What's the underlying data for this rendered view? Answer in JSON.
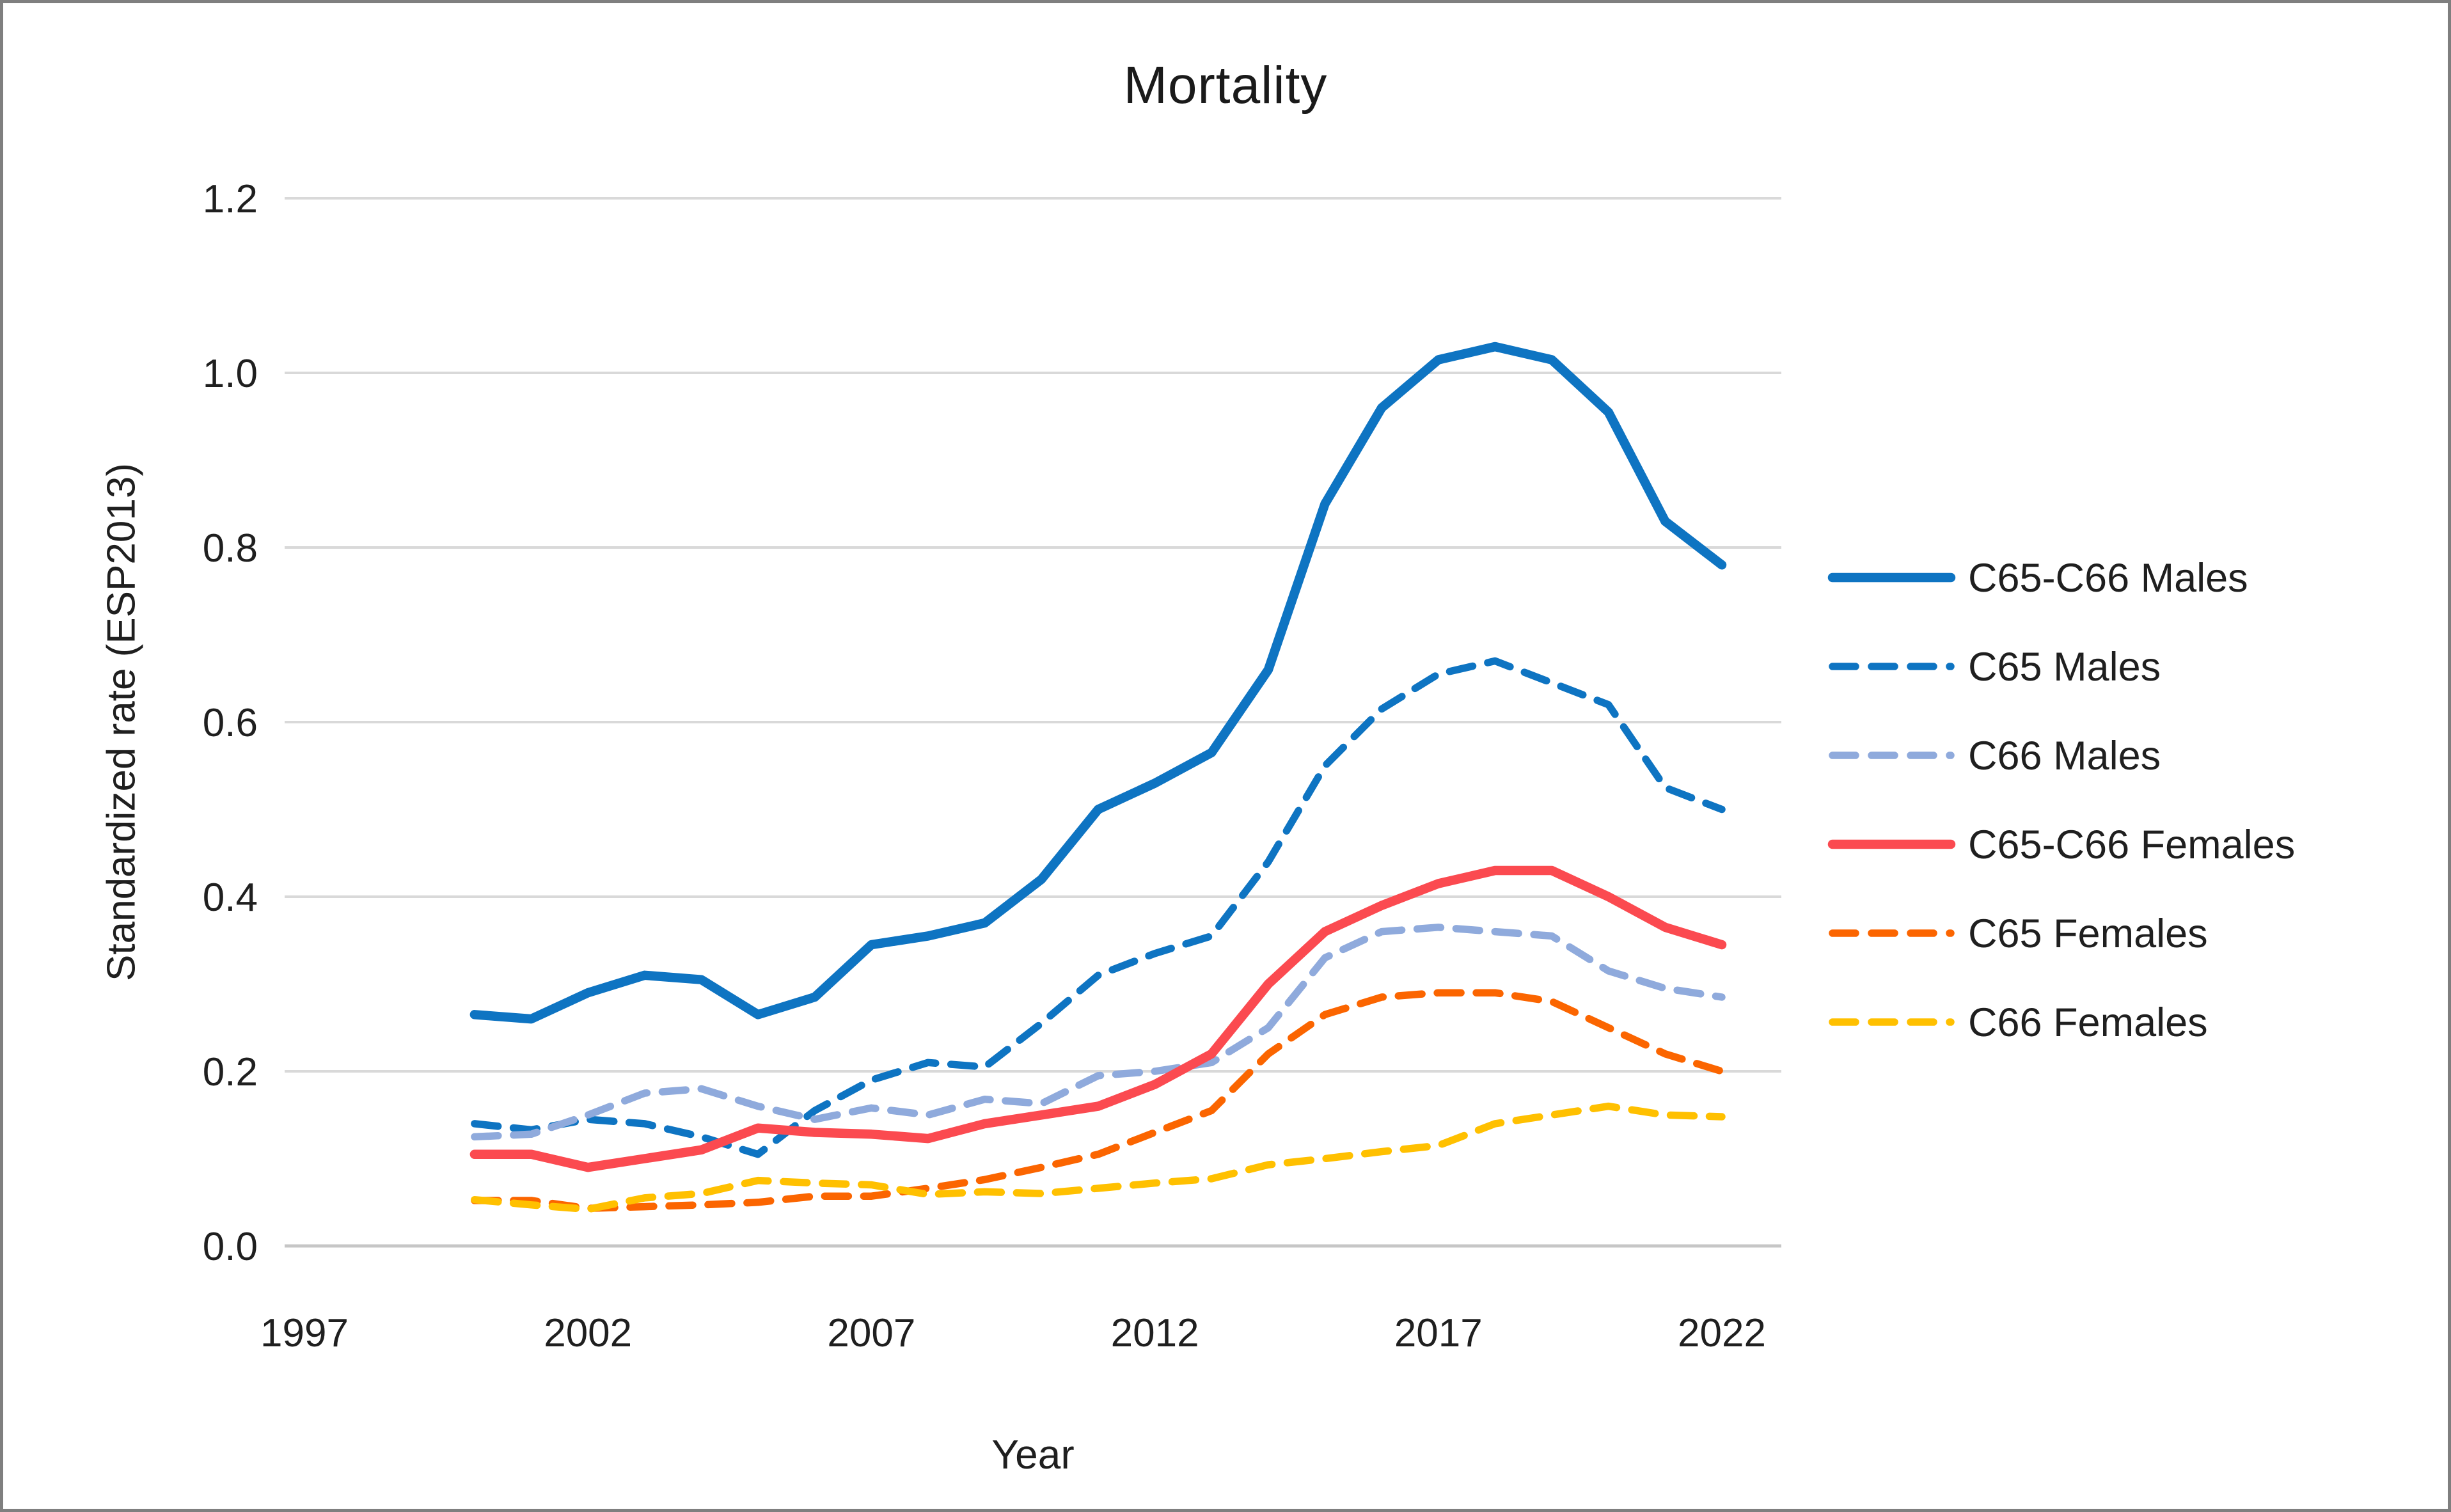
{
  "figure": {
    "title": "Mortality"
  },
  "axes": {
    "y": {
      "label": "Standardized rate (ESP2013)",
      "tick_labels": [
        "0.0",
        "0.2",
        "0.4",
        "0.6",
        "0.8",
        "1.0",
        "1.2"
      ],
      "tick_values": [
        0,
        0.2,
        0.4,
        0.6,
        0.8,
        1.0,
        1.2
      ]
    },
    "x": {
      "label": "Year",
      "tick_labels": [
        "1997",
        "2002",
        "2007",
        "2012",
        "2017",
        "2022"
      ],
      "tick_values": [
        1997,
        2002,
        2007,
        2012,
        2017,
        2022
      ]
    }
  },
  "colors": {
    "blue": "#0E74C2",
    "light_blue": "#8FAADC",
    "red": "#FB4A50",
    "orange": "#FB6500",
    "yellow": "#FFC000",
    "gridline": "#D9D9D9",
    "axis_line": "#C6C6C6",
    "text": "#1F1F1F",
    "border": "#7F7F7F"
  },
  "chart_data": {
    "type": "line",
    "title": "Mortality",
    "xlabel": "Year",
    "ylabel": "Standardized rate (ESP2013)",
    "xlim": [
      1997,
      2023
    ],
    "ylim": [
      0,
      1.2
    ],
    "grid": true,
    "legend_position": "right",
    "x": [
      2000,
      2001,
      2002,
      2003,
      2004,
      2005,
      2006,
      2007,
      2008,
      2009,
      2010,
      2011,
      2012,
      2013,
      2014,
      2015,
      2016,
      2017,
      2018,
      2019,
      2020,
      2021,
      2022
    ],
    "series": [
      {
        "name": "C65-C66 Males",
        "color": "#0E74C2",
        "style": "solid",
        "values": [
          0.265,
          0.26,
          0.29,
          0.31,
          0.305,
          0.265,
          0.285,
          0.345,
          0.355,
          0.37,
          0.42,
          0.5,
          0.53,
          0.565,
          0.66,
          0.85,
          0.96,
          1.015,
          1.03,
          1.015,
          0.955,
          0.83,
          0.78
        ]
      },
      {
        "name": "C65 Males",
        "color": "#0E74C2",
        "style": "dashed",
        "values": [
          0.14,
          0.133,
          0.145,
          0.14,
          0.125,
          0.105,
          0.155,
          0.19,
          0.21,
          0.205,
          0.255,
          0.31,
          0.335,
          0.355,
          0.44,
          0.55,
          0.615,
          0.655,
          0.67,
          0.645,
          0.62,
          0.525,
          0.5
        ]
      },
      {
        "name": "C66 Males",
        "color": "#8FAADC",
        "style": "dashed",
        "values": [
          0.125,
          0.128,
          0.15,
          0.175,
          0.18,
          0.16,
          0.145,
          0.158,
          0.15,
          0.168,
          0.163,
          0.195,
          0.2,
          0.21,
          0.25,
          0.33,
          0.36,
          0.365,
          0.36,
          0.355,
          0.315,
          0.295,
          0.285
        ]
      },
      {
        "name": "C65-C66 Females",
        "color": "#FB4A50",
        "style": "solid",
        "values": [
          0.105,
          0.105,
          0.09,
          0.1,
          0.11,
          0.135,
          0.13,
          0.128,
          0.123,
          0.14,
          0.15,
          0.16,
          0.185,
          0.22,
          0.3,
          0.36,
          0.39,
          0.415,
          0.43,
          0.43,
          0.4,
          0.365,
          0.345
        ]
      },
      {
        "name": "C65 Females",
        "color": "#FB6500",
        "style": "dashed",
        "values": [
          0.052,
          0.052,
          0.043,
          0.045,
          0.047,
          0.05,
          0.057,
          0.057,
          0.066,
          0.076,
          0.09,
          0.105,
          0.13,
          0.155,
          0.22,
          0.265,
          0.285,
          0.29,
          0.29,
          0.28,
          0.25,
          0.22,
          0.2
        ]
      },
      {
        "name": "C66 Females",
        "color": "#FFC000",
        "style": "dashed",
        "values": [
          0.053,
          0.047,
          0.042,
          0.055,
          0.06,
          0.075,
          0.072,
          0.07,
          0.059,
          0.062,
          0.06,
          0.066,
          0.072,
          0.077,
          0.093,
          0.1,
          0.108,
          0.115,
          0.14,
          0.15,
          0.16,
          0.15,
          0.148
        ]
      }
    ]
  }
}
